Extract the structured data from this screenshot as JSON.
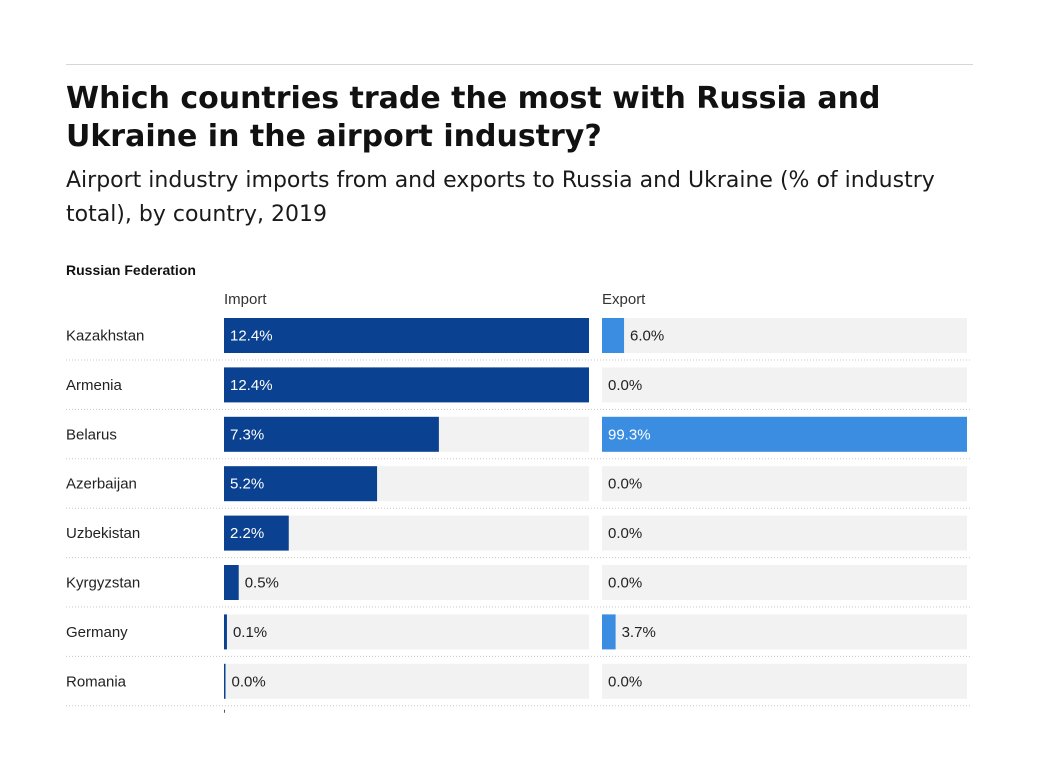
{
  "title": "Which countries trade the most with Russia and Ukraine in the airport industry?",
  "subtitle": "Airport industry imports from and exports to Russia and Ukraine (% of industry total), by country, 2019",
  "colors": {
    "import": "#0a4190",
    "export": "#3a8de0",
    "track": "#f2f2f2",
    "separator": "#c8c8c8"
  },
  "chart_data": {
    "type": "bar",
    "panel": "Russian Federation",
    "columns": [
      "Import",
      "Export"
    ],
    "categories": [
      "Kazakhstan",
      "Armenia",
      "Belarus",
      "Azerbaijan",
      "Uzbekistan",
      "Kyrgyzstan",
      "Germany",
      "Romania"
    ],
    "series": [
      {
        "name": "Import",
        "values": [
          12.4,
          12.4,
          7.3,
          5.2,
          2.2,
          0.5,
          0.1,
          0.0
        ],
        "labels": [
          "12.4%",
          "12.4%",
          "7.3%",
          "5.2%",
          "2.2%",
          "0.5%",
          "0.1%",
          "0.0%"
        ]
      },
      {
        "name": "Export",
        "values": [
          6.0,
          0.0,
          99.3,
          0.0,
          0.0,
          0.0,
          3.7,
          0.0
        ],
        "labels": [
          "6.0%",
          "0.0%",
          "99.3%",
          "0.0%",
          "0.0%",
          "0.0%",
          "3.7%",
          "0.0%"
        ]
      }
    ],
    "xlim_import": [
      0,
      12.4
    ],
    "xlim_export": [
      0,
      99.3
    ]
  }
}
